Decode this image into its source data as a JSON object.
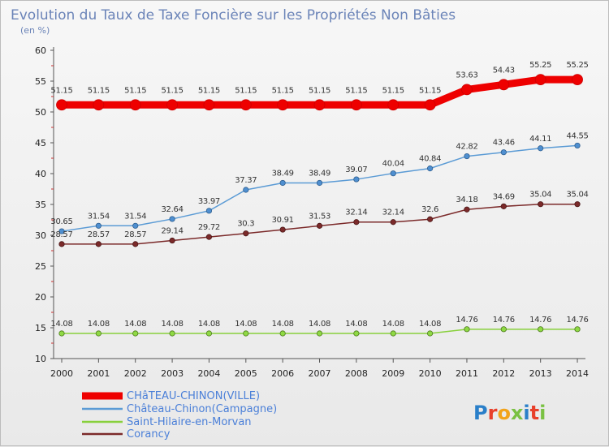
{
  "chart_data": {
    "type": "line",
    "title": "Evolution du Taux de Taxe Foncière sur les Propriétés Non Bâties",
    "subtitle": "(en %)",
    "x": [
      "2000",
      "2001",
      "2002",
      "2003",
      "2004",
      "2005",
      "2006",
      "2007",
      "2008",
      "2009",
      "2010",
      "2011",
      "2012",
      "2013",
      "2014"
    ],
    "ylim": [
      10,
      60
    ],
    "yticks": [
      10,
      15,
      20,
      25,
      30,
      35,
      40,
      45,
      50,
      55,
      60
    ],
    "grid": false,
    "legend_position": "bottom-left",
    "series": [
      {
        "name": "CHâTEAU-CHINON(VILLE)",
        "color": "#ee0000",
        "values": [
          51.15,
          51.15,
          51.15,
          51.15,
          51.15,
          51.15,
          51.15,
          51.15,
          51.15,
          51.15,
          51.15,
          53.63,
          54.43,
          55.25,
          55.25
        ],
        "labels": [
          "51.15",
          "51.15",
          "51.15",
          "51.15",
          "51.15",
          "51.15",
          "51.15",
          "51.15",
          "51.15",
          "51.15",
          "51.15",
          "53.63",
          "54.43",
          "55.25",
          "55.25"
        ]
      },
      {
        "name": "Château-Chinon(Campagne)",
        "color": "#5b9bd5",
        "values": [
          30.65,
          31.54,
          31.54,
          32.64,
          33.97,
          37.37,
          38.49,
          38.49,
          39.07,
          40.04,
          40.84,
          42.82,
          43.46,
          44.11,
          44.55
        ],
        "labels": [
          "30.65",
          "31.54",
          "31.54",
          "32.64",
          "33.97",
          "37.37",
          "38.49",
          "38.49",
          "39.07",
          "40.04",
          "40.84",
          "42.82",
          "43.46",
          "44.11",
          "44.55"
        ]
      },
      {
        "name": "Saint-Hilaire-en-Morvan",
        "color": "#88d03c",
        "values": [
          14.08,
          14.08,
          14.08,
          14.08,
          14.08,
          14.08,
          14.08,
          14.08,
          14.08,
          14.08,
          14.08,
          14.76,
          14.76,
          14.76,
          14.76
        ],
        "labels": [
          "14.08",
          "14.08",
          "14.08",
          "14.08",
          "14.08",
          "14.08",
          "14.08",
          "14.08",
          "14.08",
          "14.08",
          "14.08",
          "14.76",
          "14.76",
          "14.76",
          "14.76"
        ]
      },
      {
        "name": "Corancy",
        "color": "#7b2a2a",
        "values": [
          28.57,
          28.57,
          28.57,
          29.14,
          29.72,
          30.3,
          30.91,
          31.53,
          32.14,
          32.14,
          32.6,
          34.18,
          34.69,
          35.04,
          35.04
        ],
        "labels": [
          "28.57",
          "28.57",
          "28.57",
          "29.14",
          "29.72",
          "30.3",
          "30.91",
          "31.53",
          "32.14",
          "32.14",
          "32.6",
          "34.18",
          "34.69",
          "35.04",
          "35.04"
        ]
      }
    ]
  },
  "branding": {
    "logo_text": "Proxiti",
    "letter_colors": [
      "#2a7fc9",
      "#e8402b",
      "#f2a31a",
      "#7ac143",
      "#2a7fc9",
      "#e8402b",
      "#7ac143"
    ]
  }
}
